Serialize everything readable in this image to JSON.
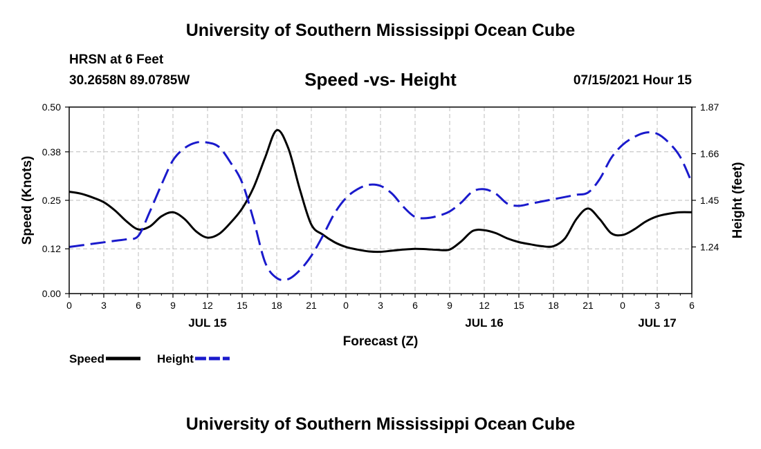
{
  "header": {
    "title": "University of Southern Mississippi Ocean Cube",
    "station": "HRSN at 6 Feet",
    "coords": "30.2658N  89.0785W",
    "subtitle": "Speed -vs- Height",
    "datetime": "07/15/2021 Hour 15"
  },
  "footer": {
    "title": "University of Southern Mississippi Ocean Cube"
  },
  "colors": {
    "speed": "#000000",
    "height": "#1a1acc",
    "grid": "#bbbbbb"
  },
  "chart_data": {
    "type": "line",
    "xlabel": "Forecast (Z)",
    "ylabel_left": "Speed (Knots)",
    "ylabel_right": "Height (feet)",
    "x_range": [
      0,
      54
    ],
    "x_ticks": [
      0,
      3,
      6,
      9,
      12,
      15,
      18,
      21,
      24,
      27,
      30,
      33,
      36,
      39,
      42,
      45,
      48,
      51,
      54
    ],
    "x_tick_labels": [
      "0",
      "3",
      "6",
      "9",
      "12",
      "15",
      "18",
      "21",
      "0",
      "3",
      "6",
      "9",
      "12",
      "15",
      "18",
      "21",
      "0",
      "3",
      "6"
    ],
    "date_labels": [
      {
        "text": "JUL 15",
        "x": 12
      },
      {
        "text": "JUL 16",
        "x": 36
      },
      {
        "text": "JUL 17",
        "x": 51
      }
    ],
    "ylim_left": [
      0,
      0.5
    ],
    "yticks_left": [
      "0.00",
      "0.12",
      "0.25",
      "0.38",
      "0.50"
    ],
    "ylim_right": [
      1.03,
      1.87
    ],
    "yticks_right": [
      "1.24",
      "1.45",
      "1.66",
      "1.87"
    ],
    "grid": true,
    "series": [
      {
        "name": "Speed",
        "axis": "left",
        "style": "solid",
        "x": [
          0,
          1,
          2,
          3,
          4,
          5,
          6,
          7,
          8,
          9,
          10,
          11,
          12,
          13,
          14,
          15,
          16,
          17,
          18,
          19,
          20,
          21,
          22,
          23,
          24,
          25,
          26,
          27,
          28,
          29,
          30,
          31,
          32,
          33,
          34,
          35,
          36,
          37,
          38,
          39,
          40,
          41,
          42,
          43,
          44,
          45,
          46,
          47,
          48,
          49,
          50,
          51,
          52,
          53,
          54
        ],
        "values": [
          0.273,
          0.268,
          0.258,
          0.245,
          0.222,
          0.193,
          0.172,
          0.18,
          0.207,
          0.218,
          0.2,
          0.167,
          0.15,
          0.16,
          0.19,
          0.228,
          0.285,
          0.365,
          0.438,
          0.39,
          0.28,
          0.185,
          0.158,
          0.138,
          0.125,
          0.118,
          0.113,
          0.112,
          0.115,
          0.118,
          0.12,
          0.119,
          0.117,
          0.118,
          0.14,
          0.168,
          0.17,
          0.162,
          0.148,
          0.138,
          0.132,
          0.127,
          0.127,
          0.148,
          0.2,
          0.228,
          0.2,
          0.162,
          0.157,
          0.172,
          0.193,
          0.207,
          0.214,
          0.218,
          0.218
        ]
      },
      {
        "name": "Height",
        "axis": "right",
        "style": "dashed",
        "x": [
          0,
          1,
          2,
          3,
          4,
          5,
          6,
          7,
          8,
          9,
          10,
          11,
          12,
          13,
          14,
          15,
          16,
          17,
          18,
          19,
          20,
          21,
          22,
          23,
          24,
          25,
          26,
          27,
          28,
          29,
          30,
          31,
          32,
          33,
          34,
          35,
          36,
          37,
          38,
          39,
          40,
          41,
          42,
          43,
          44,
          45,
          46,
          47,
          48,
          49,
          50,
          51,
          52,
          53,
          54
        ],
        "values": [
          1.24,
          1.247,
          1.254,
          1.261,
          1.268,
          1.275,
          1.29,
          1.4,
          1.52,
          1.63,
          1.685,
          1.71,
          1.71,
          1.69,
          1.62,
          1.53,
          1.36,
          1.17,
          1.1,
          1.095,
          1.135,
          1.2,
          1.29,
          1.39,
          1.46,
          1.5,
          1.52,
          1.515,
          1.48,
          1.42,
          1.375,
          1.37,
          1.38,
          1.4,
          1.44,
          1.49,
          1.5,
          1.48,
          1.435,
          1.425,
          1.435,
          1.445,
          1.455,
          1.465,
          1.475,
          1.485,
          1.545,
          1.64,
          1.7,
          1.735,
          1.755,
          1.75,
          1.71,
          1.645,
          1.53
        ]
      }
    ],
    "legend": [
      {
        "label": "Speed",
        "style": "solid"
      },
      {
        "label": "Height",
        "style": "dashed"
      }
    ],
    "legend_position": "bottom-left"
  }
}
